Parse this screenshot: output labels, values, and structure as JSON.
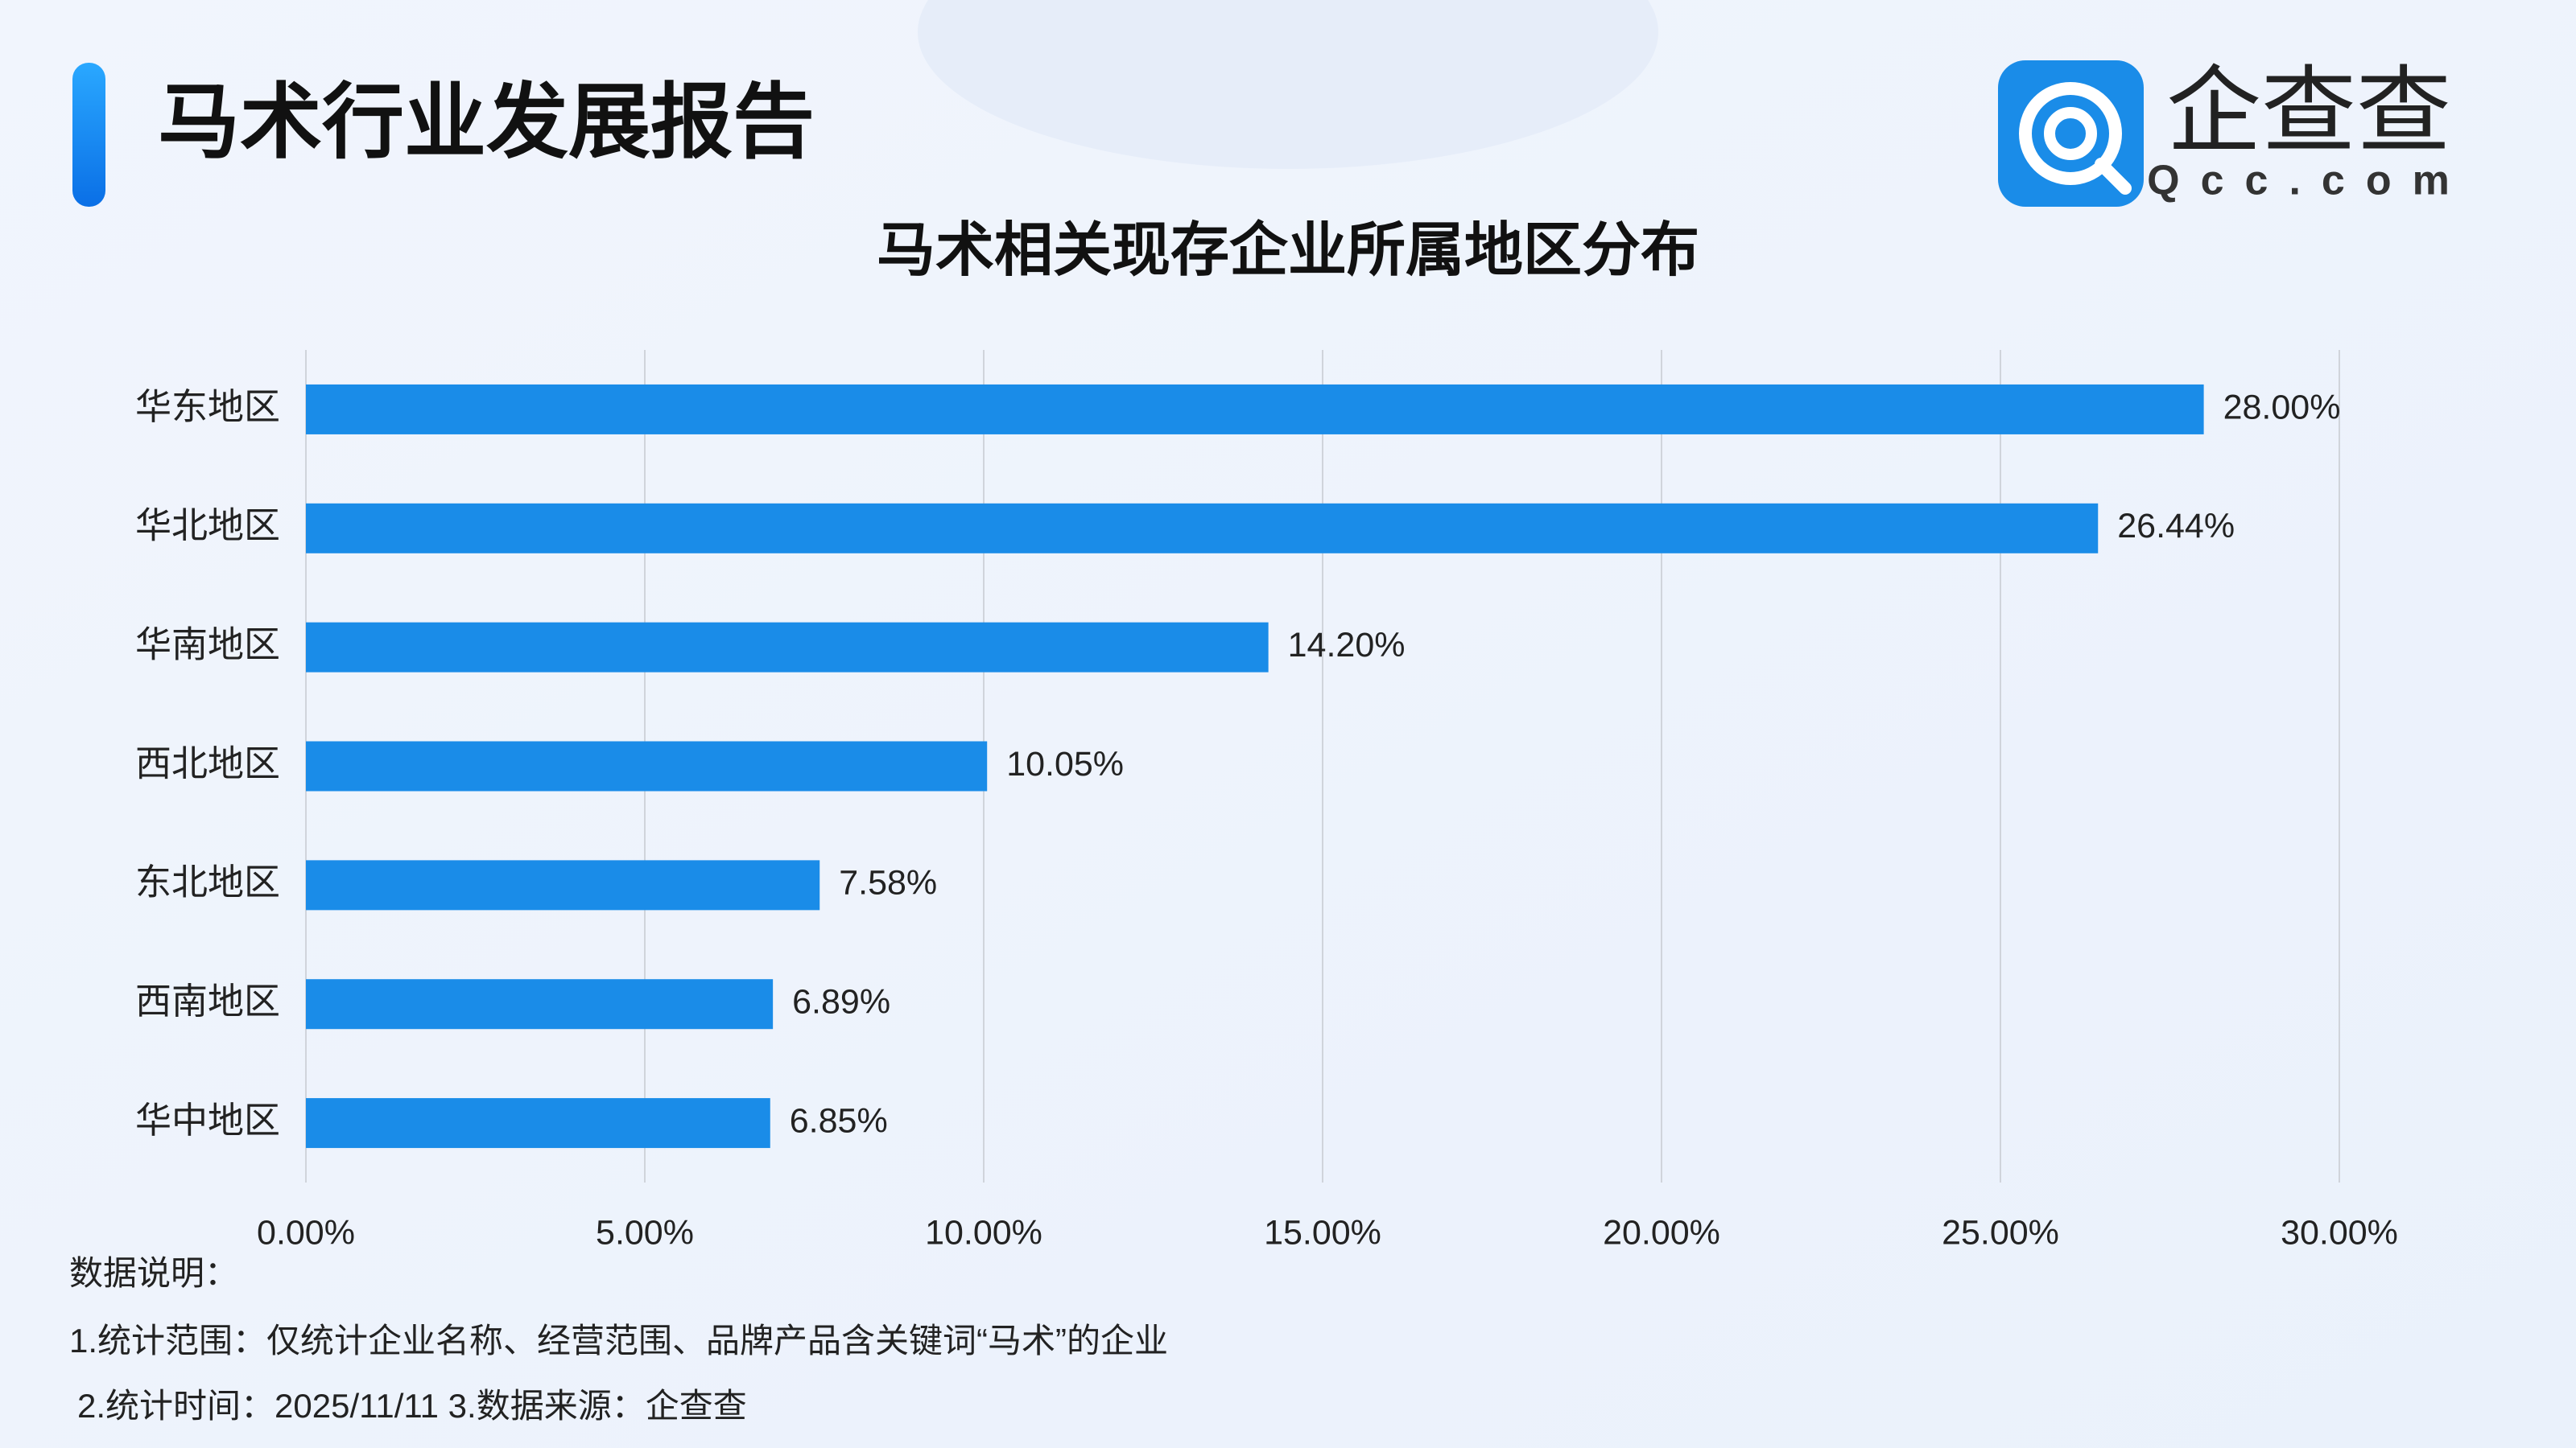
{
  "header": {
    "title": "马术行业发展报告"
  },
  "logo": {
    "name": "企查查",
    "domain": "Qcc.com"
  },
  "chart_data": {
    "type": "barh",
    "title": "马术相关现存企业所属地区分布",
    "categories": [
      "华东地区",
      "华北地区",
      "华南地区",
      "西北地区",
      "东北地区",
      "西南地区",
      "华中地区"
    ],
    "values": [
      28.0,
      26.44,
      14.2,
      10.05,
      7.58,
      6.89,
      6.85
    ],
    "value_labels": [
      "28.00%",
      "26.44%",
      "14.20%",
      "10.05%",
      "7.58%",
      "6.89%",
      "6.85%"
    ],
    "color": "#1a8ce8",
    "xlim": [
      0,
      30
    ],
    "xticks": [
      {
        "value": 0,
        "label": "0.00%"
      },
      {
        "value": 5,
        "label": "5.00%"
      },
      {
        "value": 10,
        "label": "10.00%"
      },
      {
        "value": 15,
        "label": "15.00%"
      },
      {
        "value": 20,
        "label": "20.00%"
      },
      {
        "value": 25,
        "label": "25.00%"
      },
      {
        "value": 30,
        "label": "30.00%"
      }
    ],
    "grid": true
  },
  "notes": [
    "数据说明：",
    "1.统计范围：仅统计企业名称、经营范围、品牌产品含关键词“马术”的企业",
    "2.统计时间：2025/11/11  3.数据来源：企查查"
  ]
}
